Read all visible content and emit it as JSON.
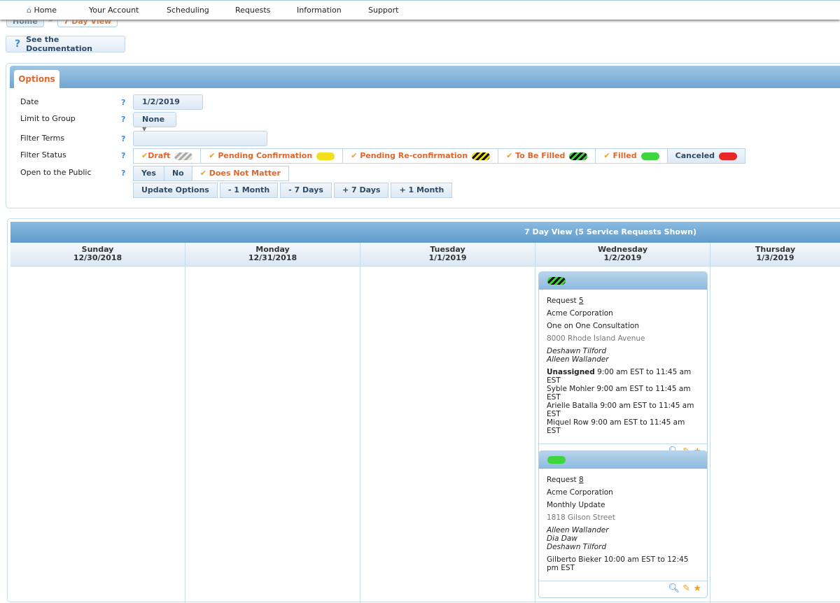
{
  "nav": {
    "items": [
      "Home",
      "Your Account",
      "Scheduling",
      "Requests",
      "Information",
      "Support"
    ]
  },
  "breadcrumb": [
    "Home",
    "»",
    "7 Day View"
  ],
  "doc_button": "See the Documentation",
  "options": {
    "tab": "Options",
    "help": "?",
    "date_label": "Date",
    "date_value": "1/2/2019",
    "group_label": "Limit to Group",
    "group_value": "None",
    "terms_label": "Filter Terms",
    "terms_value": "",
    "status_label": "Filter Status",
    "statuses": [
      {
        "label": "Draft",
        "checked": true,
        "color": "#aaaaaa"
      },
      {
        "label": "Pending Confirmation",
        "checked": true,
        "color": "#f0e020"
      },
      {
        "label": "Pending Re-confirmation",
        "checked": true,
        "color": "#f0e020"
      },
      {
        "label": "To Be Filled",
        "checked": true,
        "color": "#3fd53f"
      },
      {
        "label": "Filled",
        "checked": true,
        "color": "#3fd53f"
      },
      {
        "label": "Canceled",
        "checked": false,
        "color": "#e82828"
      }
    ],
    "public_label": "Open to the Public",
    "public_options": [
      "Yes",
      "No",
      "Does Not Matter"
    ],
    "public_selected": "Does Not Matter",
    "actions": [
      "Update Options",
      "- 1 Month",
      "- 7 Days",
      "+ 7 Days",
      "+ 1 Month"
    ]
  },
  "calendar": {
    "title": "7 Day View (5 Service Requests Shown)",
    "days": [
      {
        "name": "Sunday",
        "date": "12/30/2018"
      },
      {
        "name": "Monday",
        "date": "12/31/2018"
      },
      {
        "name": "Tuesday",
        "date": "1/1/2019"
      },
      {
        "name": "Wednesday",
        "date": "1/2/2019"
      },
      {
        "name": "Thursday",
        "date": "1/3/2019"
      }
    ],
    "requests": [
      {
        "status": "To Be Filled",
        "prefix": "Request",
        "number": "5",
        "company": "Acme Corporation",
        "title": "One on One Consultation",
        "address": "8000 Rhode Island Avenue",
        "people": [
          "Deshawn Tilford",
          "Alleen Wallander"
        ],
        "assignments": [
          {
            "name": "Unassigned",
            "time": "9:00 am EST to 11:45 am EST"
          },
          {
            "name": "Syble Mohler",
            "time": "9:00 am EST to 11:45 am EST"
          },
          {
            "name": "Arielle Batalla",
            "time": "9:00 am EST to 11:45 am EST"
          },
          {
            "name": "Miquel Row",
            "time": "9:00 am EST to 11:45 am EST"
          }
        ]
      },
      {
        "status": "Filled",
        "prefix": "Request",
        "number": "8",
        "company": "Acme Corporation",
        "title": "Monthly Update",
        "address": "1818 Gilson Street",
        "people": [
          "Alleen Wallander",
          "Dia Daw",
          "Deshawn Tilford"
        ],
        "assignments": [
          {
            "name": "Gilberto Bieker",
            "time": "10:00 am EST to 12:45 pm EST"
          }
        ]
      }
    ]
  }
}
